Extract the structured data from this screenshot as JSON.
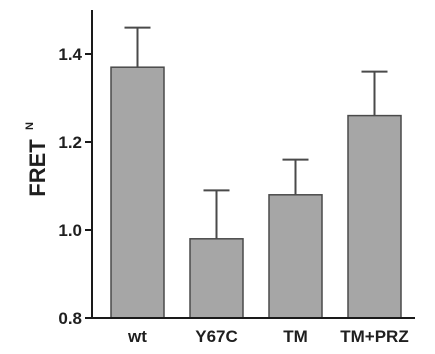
{
  "chart_data": {
    "type": "bar",
    "title": "",
    "xlabel": "",
    "ylabel": "FRET",
    "ylabel_superscript": "N",
    "categories": [
      "wt",
      "Y67C",
      "TM",
      "TM+PRZ"
    ],
    "values": [
      1.37,
      0.98,
      1.08,
      1.26
    ],
    "error_plus": [
      0.09,
      0.11,
      0.08,
      0.1
    ],
    "ylim": [
      0.8,
      1.5
    ],
    "yticks": [
      0.8,
      1.0,
      1.2,
      1.4
    ],
    "ytick_labels": [
      "0.8",
      "1.0",
      "1.2",
      "1.4"
    ],
    "bar_color": "#a6a6a6",
    "bar_edge_color": "#4a4a4a",
    "grid": false,
    "legend": "none"
  }
}
